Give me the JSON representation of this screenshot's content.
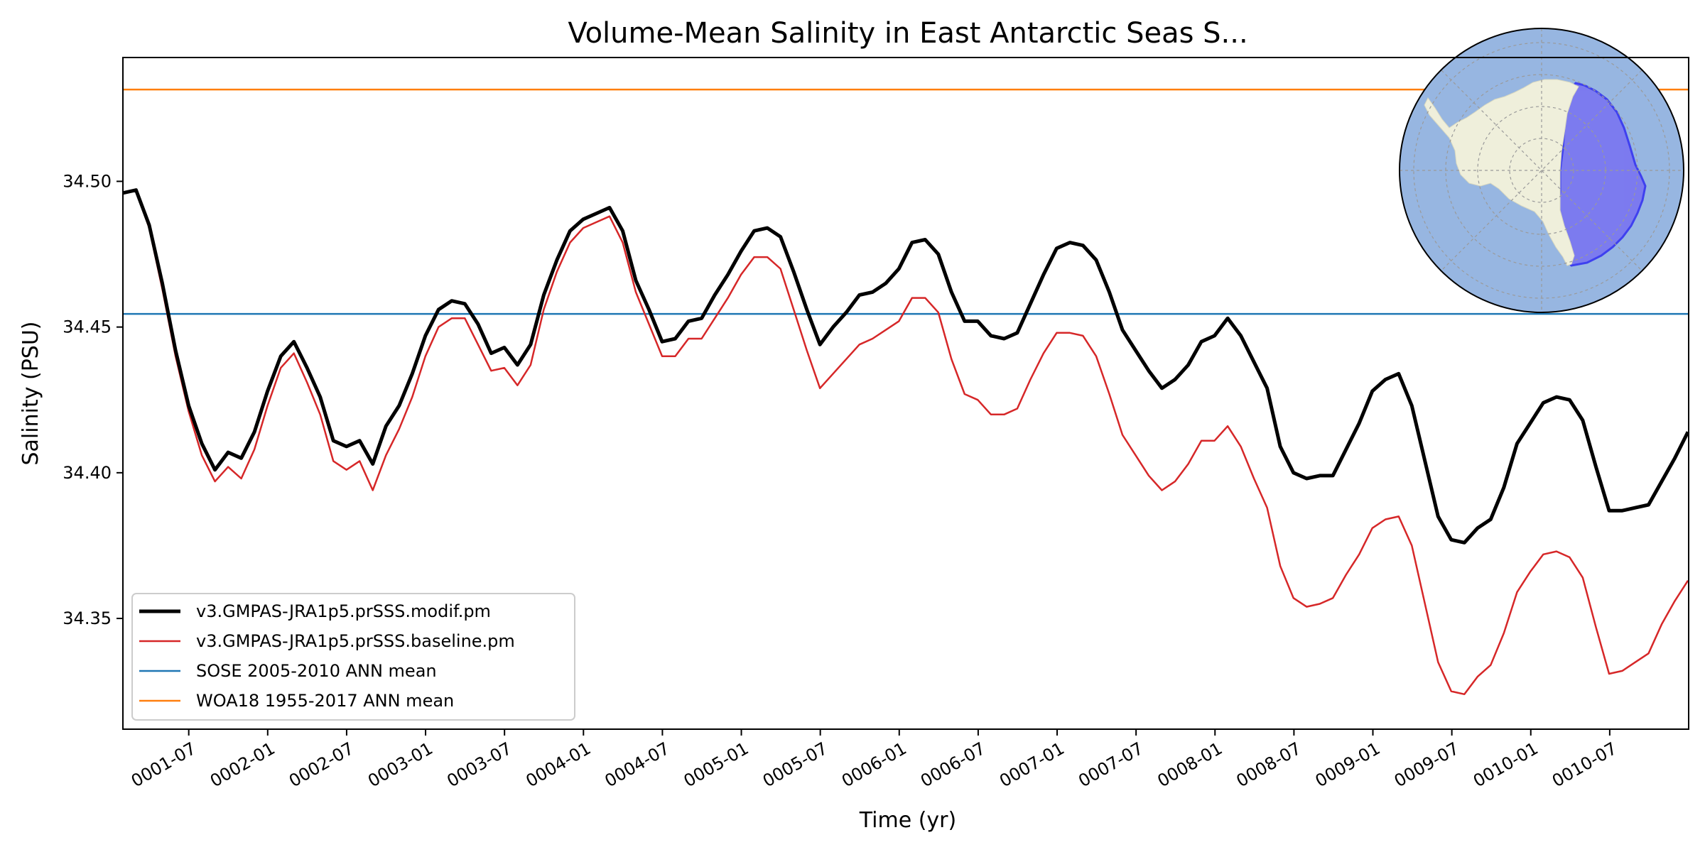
{
  "chart_data": {
    "type": "line",
    "title": "Volume-Mean Salinity in East Antarctic Seas S...",
    "xlabel": "Time (yr)",
    "ylabel": "Salinity (PSU)",
    "xlim": [
      1.083,
      11.0
    ],
    "ylim": [
      34.312,
      34.5425
    ],
    "grid": false,
    "legend_position": "lower-left",
    "yticks": [
      34.35,
      34.4,
      34.45,
      34.5
    ],
    "ytick_labels": [
      "34.35",
      "34.40",
      "34.45",
      "34.50"
    ],
    "xticks": [
      1.5,
      2.0,
      2.5,
      3.0,
      3.5,
      4.0,
      4.5,
      5.0,
      5.5,
      6.0,
      6.5,
      7.0,
      7.5,
      8.0,
      8.5,
      9.0,
      9.5,
      10.0,
      10.5
    ],
    "xtick_labels": [
      "0001-07",
      "0002-01",
      "0002-07",
      "0003-01",
      "0003-07",
      "0004-01",
      "0004-07",
      "0005-01",
      "0005-07",
      "0006-01",
      "0006-07",
      "0007-01",
      "0007-07",
      "0008-01",
      "0008-07",
      "0009-01",
      "0009-07",
      "0010-01",
      "0010-07"
    ],
    "series": [
      {
        "name": "v3.GMPAS-JRA1p5.prSSS.modif.pm",
        "color": "#000000",
        "x_start": 1.083,
        "x_step": 0.0833,
        "values": [
          34.496,
          34.497,
          34.485,
          34.465,
          34.442,
          34.423,
          34.41,
          34.401,
          34.407,
          34.405,
          34.414,
          34.428,
          34.44,
          34.445,
          34.436,
          34.426,
          34.411,
          34.409,
          34.411,
          34.403,
          34.416,
          34.423,
          34.434,
          34.447,
          34.456,
          34.459,
          34.458,
          34.451,
          34.441,
          34.443,
          34.437,
          34.444,
          34.461,
          34.473,
          34.483,
          34.487,
          34.489,
          34.491,
          34.483,
          34.466,
          34.456,
          34.445,
          34.446,
          34.452,
          34.453,
          34.461,
          34.468,
          34.476,
          34.483,
          34.484,
          34.481,
          34.469,
          34.456,
          34.444,
          34.45,
          34.455,
          34.461,
          34.462,
          34.465,
          34.47,
          34.479,
          34.48,
          34.475,
          34.462,
          34.452,
          34.452,
          34.447,
          34.446,
          34.448,
          34.458,
          34.468,
          34.477,
          34.479,
          34.478,
          34.473,
          34.462,
          34.449,
          34.442,
          34.435,
          34.429,
          34.432,
          34.437,
          34.445,
          34.447,
          34.453,
          34.447,
          34.438,
          34.429,
          34.409,
          34.4,
          34.398,
          34.399,
          34.399,
          34.408,
          34.417,
          34.428,
          34.432,
          34.434,
          34.423,
          34.404,
          34.385,
          34.377,
          34.376,
          34.381,
          34.384,
          34.395,
          34.41,
          34.417,
          34.424,
          34.426,
          34.425,
          34.418,
          34.402,
          34.387,
          34.387,
          34.388,
          34.389,
          34.397,
          34.405,
          34.414
        ]
      },
      {
        "name": "v3.GMPAS-JRA1p5.prSSS.baseline.pm",
        "color": "#d62728",
        "x_start": 1.083,
        "x_step": 0.0833,
        "values": [
          34.496,
          34.497,
          34.484,
          34.463,
          34.44,
          34.421,
          34.406,
          34.397,
          34.402,
          34.398,
          34.408,
          34.423,
          34.436,
          34.441,
          34.431,
          34.42,
          34.404,
          34.401,
          34.404,
          34.394,
          34.406,
          34.415,
          34.426,
          34.44,
          34.45,
          34.453,
          34.453,
          34.444,
          34.435,
          34.436,
          34.43,
          34.437,
          34.456,
          34.469,
          34.479,
          34.484,
          34.486,
          34.488,
          34.479,
          34.462,
          34.451,
          34.44,
          34.44,
          34.446,
          34.446,
          34.453,
          34.46,
          34.468,
          34.474,
          34.474,
          34.47,
          34.456,
          34.442,
          34.429,
          34.434,
          34.439,
          34.444,
          34.446,
          34.449,
          34.452,
          34.46,
          34.46,
          34.455,
          34.439,
          34.427,
          34.425,
          34.42,
          34.42,
          34.422,
          34.432,
          34.441,
          34.448,
          34.448,
          34.447,
          34.44,
          34.427,
          34.413,
          34.406,
          34.399,
          34.394,
          34.397,
          34.403,
          34.411,
          34.411,
          34.416,
          34.409,
          34.398,
          34.388,
          34.368,
          34.357,
          34.354,
          34.355,
          34.357,
          34.365,
          34.372,
          34.381,
          34.384,
          34.385,
          34.375,
          34.355,
          34.335,
          34.325,
          34.324,
          34.33,
          34.334,
          34.345,
          34.359,
          34.366,
          34.372,
          34.373,
          34.371,
          34.364,
          34.347,
          34.331,
          34.332,
          34.335,
          34.338,
          34.348,
          34.356,
          34.363
        ]
      },
      {
        "name": "SOSE 2005-2010 ANN mean",
        "color": "#1f77b4",
        "constant": 34.4545
      },
      {
        "name": "WOA18 1955-2017 ANN mean",
        "color": "#ff7f0e",
        "constant": 34.5315
      }
    ],
    "inset_map": {
      "description": "South polar stereographic map of Antarctica with East Antarctic Seas region highlighted",
      "ocean_color": "#97b6e1",
      "land_color": "#efefdb",
      "region_color": "#7b78f0",
      "region_edge_color": "#3a3af0"
    }
  }
}
